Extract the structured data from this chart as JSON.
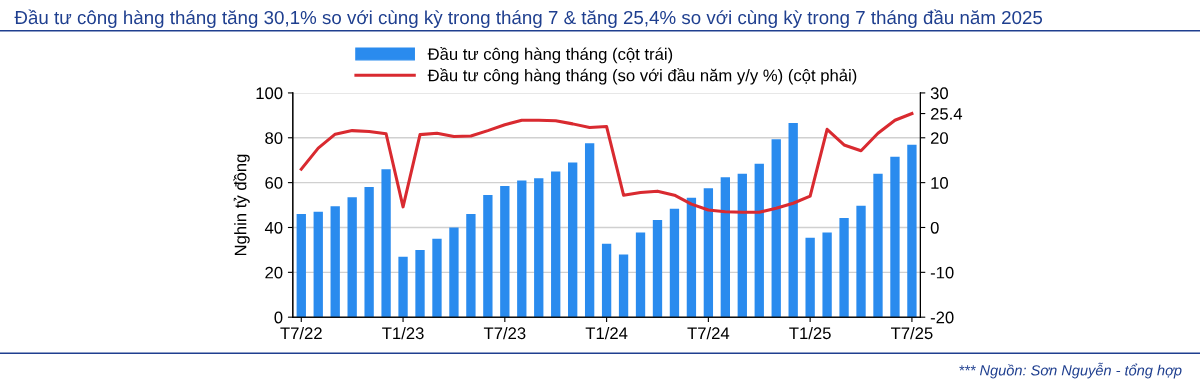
{
  "chart_data": {
    "type": "bar",
    "title": "Đầu tư công hàng tháng tăng 30,1% so với cùng kỳ trong tháng 7 & tăng 25,4% so với cùng kỳ trong 7 tháng đầu năm 2025",
    "ylabel": "Nghin tỷ đồng",
    "categories": [
      "T7/22",
      null,
      null,
      null,
      null,
      null,
      "T1/23",
      null,
      null,
      null,
      null,
      null,
      "T7/23",
      null,
      null,
      null,
      null,
      null,
      "T1/24",
      null,
      null,
      null,
      null,
      null,
      "T7/24",
      null,
      null,
      null,
      null,
      null,
      "T1/25",
      null,
      null,
      null,
      null,
      null,
      "T7/25"
    ],
    "series": [
      {
        "name": "Đầu tư công hàng tháng (cột trái)",
        "color": "#2a8bee",
        "values": [
          46,
          47,
          49.5,
          53.5,
          58,
          66,
          27,
          30,
          35,
          40,
          46,
          54.5,
          58.5,
          61,
          62,
          65,
          69,
          77.6,
          32.8,
          27.9,
          37.8,
          43.3,
          48.4,
          53.3,
          57.5,
          62.4,
          64,
          68.4,
          79.3,
          86.6,
          35.4,
          37.8,
          44.2,
          49.7,
          64,
          71.5,
          76.9
        ]
      },
      {
        "name": "Đầu tư công hàng tháng (so với đầu năm y/y %) (cột phải)",
        "type": "line",
        "axis": "y2",
        "color": "#d92a30",
        "values": [
          13,
          17.7,
          20.8,
          21.6,
          21.4,
          20.9,
          4.6,
          20.7,
          21,
          20.3,
          20.4,
          21.6,
          22.9,
          23.9,
          23.9,
          23.8,
          23.1,
          22.3,
          22.5,
          7.2,
          7.8,
          8.1,
          7.2,
          5.2,
          3.9,
          3.5,
          3.4,
          3.4,
          4.3,
          5.4,
          7,
          21.9,
          18.4,
          17.1,
          21,
          23.9,
          25.4
        ]
      }
    ],
    "ylim": [
      0,
      100
    ],
    "yticks": [
      0,
      20,
      40,
      60,
      80,
      100
    ],
    "y2lim": [
      -20,
      30
    ],
    "y2ticks": [
      -20,
      -10,
      0,
      10,
      20,
      {
        "value": 25.4,
        "label": "25.4"
      },
      30
    ],
    "grid": "y",
    "legend": "top",
    "annotations": [
      "*** Nguồn: Sơn Nguyễn - tổng hợp"
    ]
  }
}
